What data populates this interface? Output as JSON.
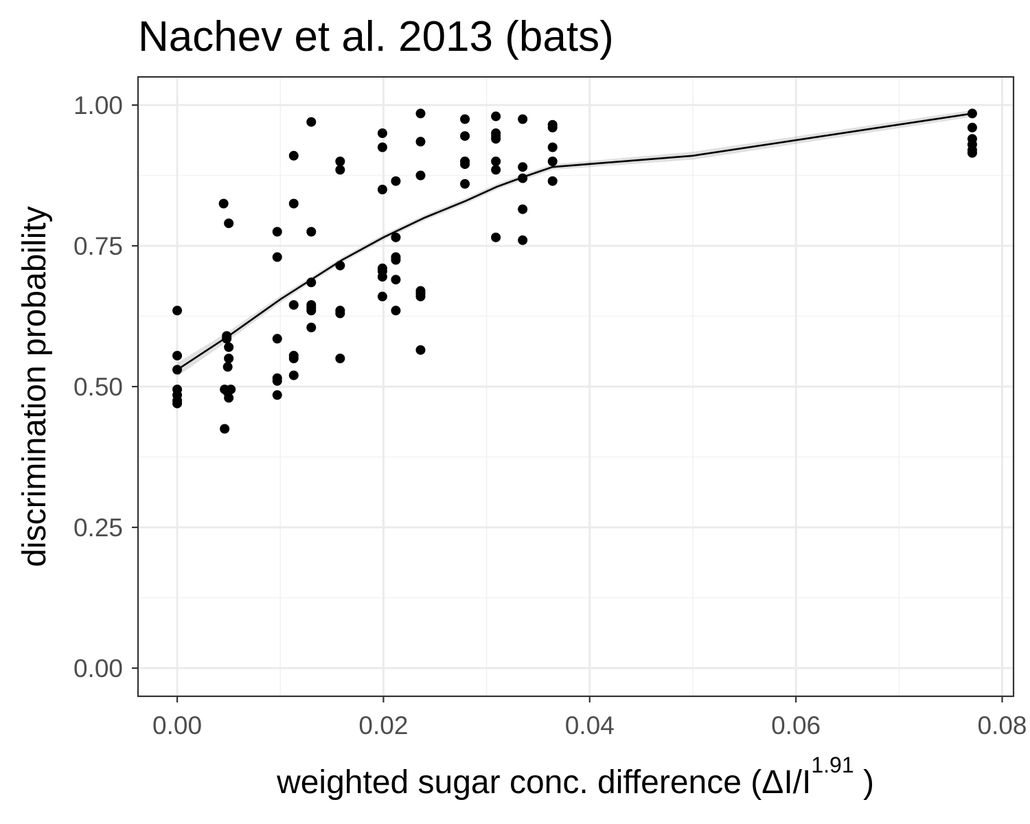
{
  "chart_data": {
    "type": "scatter",
    "title": "Nachev et al. 2013 (bats)",
    "xlabel": "weighted  sugar conc.  difference (ΔI/I",
    "xlabel_sup": "1.91",
    "xlabel_close": " )",
    "ylabel": "discrimination probability",
    "xlim": [
      -0.0038,
      0.0811
    ],
    "ylim": [
      -0.05,
      1.05
    ],
    "x_ticks": [
      0.0,
      0.02,
      0.04,
      0.06,
      0.08
    ],
    "x_tick_labels": [
      "0.00",
      "0.02",
      "0.04",
      "0.06",
      "0.08"
    ],
    "y_ticks": [
      0.0,
      0.25,
      0.5,
      0.75,
      1.0
    ],
    "y_tick_labels": [
      "0.00",
      "0.25",
      "0.50",
      "0.75",
      "1.00"
    ],
    "x_minor": [
      0.01,
      0.03,
      0.05,
      0.07
    ],
    "y_minor": [
      0.125,
      0.375,
      0.625,
      0.875
    ],
    "grid": true,
    "legend": "none",
    "points": [
      {
        "x": 0.0,
        "y": 0.635
      },
      {
        "x": 0.0,
        "y": 0.555
      },
      {
        "x": 0.0,
        "y": 0.53
      },
      {
        "x": 0.0,
        "y": 0.495
      },
      {
        "x": 0.0,
        "y": 0.485
      },
      {
        "x": 0.0,
        "y": 0.475
      },
      {
        "x": 0.0,
        "y": 0.47
      },
      {
        "x": 0.0045,
        "y": 0.825
      },
      {
        "x": 0.0048,
        "y": 0.59
      },
      {
        "x": 0.0048,
        "y": 0.585
      },
      {
        "x": 0.0049,
        "y": 0.535
      },
      {
        "x": 0.0046,
        "y": 0.495
      },
      {
        "x": 0.0049,
        "y": 0.49
      },
      {
        "x": 0.0046,
        "y": 0.425
      },
      {
        "x": 0.005,
        "y": 0.79
      },
      {
        "x": 0.005,
        "y": 0.57
      },
      {
        "x": 0.005,
        "y": 0.55
      },
      {
        "x": 0.005,
        "y": 0.48
      },
      {
        "x": 0.0052,
        "y": 0.495
      },
      {
        "x": 0.0097,
        "y": 0.775
      },
      {
        "x": 0.0097,
        "y": 0.73
      },
      {
        "x": 0.0097,
        "y": 0.585
      },
      {
        "x": 0.0097,
        "y": 0.515
      },
      {
        "x": 0.0097,
        "y": 0.51
      },
      {
        "x": 0.0097,
        "y": 0.485
      },
      {
        "x": 0.0113,
        "y": 0.91
      },
      {
        "x": 0.0113,
        "y": 0.825
      },
      {
        "x": 0.0113,
        "y": 0.645
      },
      {
        "x": 0.0113,
        "y": 0.555
      },
      {
        "x": 0.0113,
        "y": 0.55
      },
      {
        "x": 0.0113,
        "y": 0.52
      },
      {
        "x": 0.013,
        "y": 0.97
      },
      {
        "x": 0.013,
        "y": 0.775
      },
      {
        "x": 0.013,
        "y": 0.685
      },
      {
        "x": 0.013,
        "y": 0.645
      },
      {
        "x": 0.013,
        "y": 0.64
      },
      {
        "x": 0.013,
        "y": 0.635
      },
      {
        "x": 0.013,
        "y": 0.605
      },
      {
        "x": 0.0158,
        "y": 0.9
      },
      {
        "x": 0.0158,
        "y": 0.885
      },
      {
        "x": 0.0158,
        "y": 0.715
      },
      {
        "x": 0.0158,
        "y": 0.635
      },
      {
        "x": 0.0158,
        "y": 0.63
      },
      {
        "x": 0.0158,
        "y": 0.55
      },
      {
        "x": 0.0199,
        "y": 0.95
      },
      {
        "x": 0.0199,
        "y": 0.925
      },
      {
        "x": 0.0199,
        "y": 0.85
      },
      {
        "x": 0.0199,
        "y": 0.71
      },
      {
        "x": 0.0199,
        "y": 0.705
      },
      {
        "x": 0.0199,
        "y": 0.695
      },
      {
        "x": 0.0199,
        "y": 0.66
      },
      {
        "x": 0.0212,
        "y": 0.865
      },
      {
        "x": 0.0212,
        "y": 0.765
      },
      {
        "x": 0.0212,
        "y": 0.73
      },
      {
        "x": 0.0212,
        "y": 0.725
      },
      {
        "x": 0.0212,
        "y": 0.69
      },
      {
        "x": 0.0212,
        "y": 0.635
      },
      {
        "x": 0.0236,
        "y": 0.985
      },
      {
        "x": 0.0236,
        "y": 0.935
      },
      {
        "x": 0.0236,
        "y": 0.875
      },
      {
        "x": 0.0236,
        "y": 0.67
      },
      {
        "x": 0.0236,
        "y": 0.665
      },
      {
        "x": 0.0236,
        "y": 0.66
      },
      {
        "x": 0.0236,
        "y": 0.565
      },
      {
        "x": 0.0279,
        "y": 0.975
      },
      {
        "x": 0.0279,
        "y": 0.945
      },
      {
        "x": 0.0279,
        "y": 0.9
      },
      {
        "x": 0.0279,
        "y": 0.895
      },
      {
        "x": 0.0279,
        "y": 0.86
      },
      {
        "x": 0.0309,
        "y": 0.98
      },
      {
        "x": 0.0309,
        "y": 0.95
      },
      {
        "x": 0.0309,
        "y": 0.945
      },
      {
        "x": 0.0309,
        "y": 0.94
      },
      {
        "x": 0.0309,
        "y": 0.9
      },
      {
        "x": 0.0309,
        "y": 0.885
      },
      {
        "x": 0.0309,
        "y": 0.765
      },
      {
        "x": 0.0335,
        "y": 0.975
      },
      {
        "x": 0.0335,
        "y": 0.89
      },
      {
        "x": 0.0335,
        "y": 0.87
      },
      {
        "x": 0.0335,
        "y": 0.815
      },
      {
        "x": 0.0335,
        "y": 0.76
      },
      {
        "x": 0.0364,
        "y": 0.965
      },
      {
        "x": 0.0364,
        "y": 0.96
      },
      {
        "x": 0.0364,
        "y": 0.925
      },
      {
        "x": 0.0364,
        "y": 0.9
      },
      {
        "x": 0.0364,
        "y": 0.865
      },
      {
        "x": 0.0771,
        "y": 0.985
      },
      {
        "x": 0.0771,
        "y": 0.96
      },
      {
        "x": 0.0771,
        "y": 0.94
      },
      {
        "x": 0.0771,
        "y": 0.93
      },
      {
        "x": 0.0771,
        "y": 0.92
      },
      {
        "x": 0.0771,
        "y": 0.915
      }
    ],
    "fit_line": {
      "x": [
        0.0,
        0.005,
        0.01,
        0.013,
        0.016,
        0.02,
        0.024,
        0.028,
        0.031,
        0.034,
        0.0364,
        0.05,
        0.0771
      ],
      "y": [
        0.53,
        0.59,
        0.655,
        0.69,
        0.725,
        0.765,
        0.8,
        0.83,
        0.855,
        0.875,
        0.89,
        0.91,
        0.985
      ],
      "band_halfwidth": [
        0.012,
        0.008,
        0.006,
        0.005,
        0.005,
        0.005,
        0.005,
        0.005,
        0.005,
        0.005,
        0.005,
        0.007,
        0.006
      ]
    }
  }
}
